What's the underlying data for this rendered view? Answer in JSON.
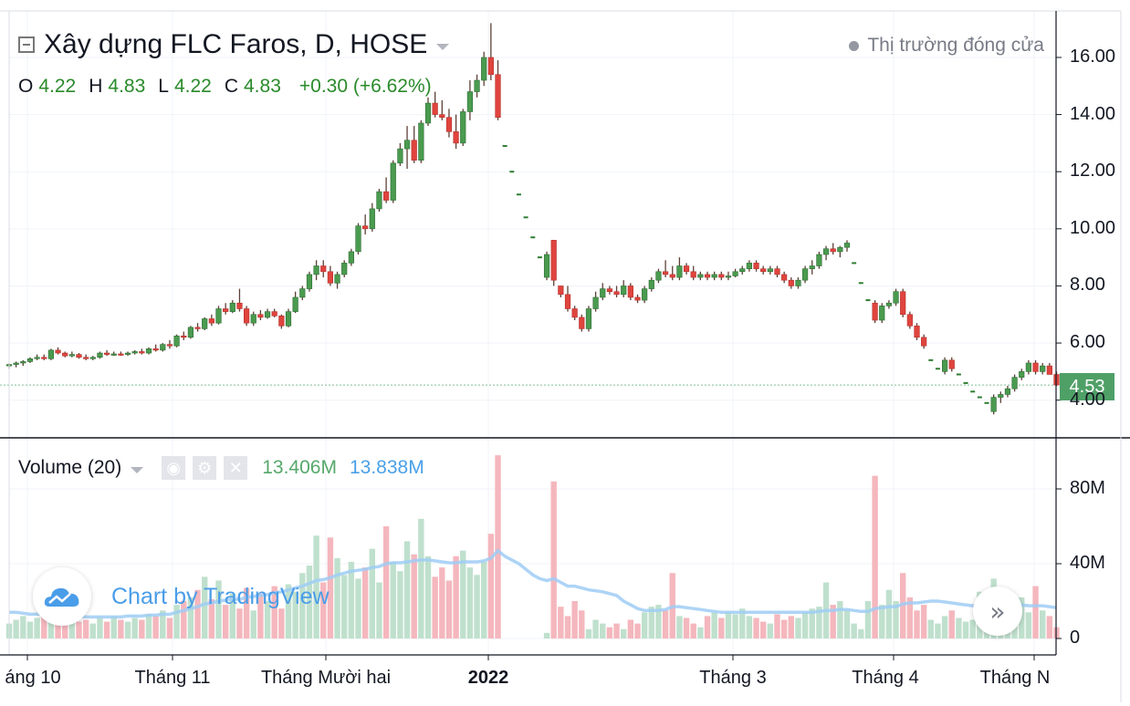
{
  "header": {
    "title": "Xây dựng FLC Faros, D, HOSE",
    "market_status": "Thị trường đóng cửa"
  },
  "ohlc": {
    "o_key": "O",
    "o": "4.22",
    "h_key": "H",
    "h": "4.83",
    "l_key": "L",
    "l": "4.22",
    "c_key": "C",
    "c": "4.83",
    "change": "+0.30 (+6.62%)"
  },
  "volume": {
    "title": "Volume (20)",
    "value": "13.406M",
    "ma_value": "13.838M"
  },
  "watermark": "Chart by TradingView",
  "last_price": "4.53",
  "price_axis": [
    "16.00",
    "14.00",
    "12.00",
    "10.00",
    "8.00",
    "6.00",
    "4.00"
  ],
  "volume_axis": [
    "80M",
    "40M",
    "0"
  ],
  "time_axis": [
    {
      "label": "áng 10",
      "bold": false
    },
    {
      "label": "Tháng 11",
      "bold": false
    },
    {
      "label": "Tháng Mười hai",
      "bold": false
    },
    {
      "label": "2022",
      "bold": true
    },
    {
      "label": "Tháng 3",
      "bold": false
    },
    {
      "label": "Tháng 4",
      "bold": false
    },
    {
      "label": "Tháng N",
      "bold": false
    }
  ],
  "colors": {
    "up": "#4a9b4f",
    "down": "#e0443e",
    "volume_up": "#bfe0cd",
    "volume_down": "#f4b7bd",
    "volume_ma": "#9fcdf4",
    "badge": "#4fa067"
  },
  "chart_data": {
    "type": "candlestick",
    "title": "Xây dựng FLC Faros, D, HOSE",
    "price_range": [
      3.0,
      17.5
    ],
    "volume_range_millions": [
      0,
      100
    ],
    "series": [
      {
        "name": "price",
        "values": [
          [
            5.2,
            5.3,
            5.1,
            5.25
          ],
          [
            5.25,
            5.35,
            5.15,
            5.3
          ],
          [
            5.3,
            5.4,
            5.2,
            5.35
          ],
          [
            5.35,
            5.5,
            5.3,
            5.45
          ],
          [
            5.45,
            5.6,
            5.4,
            5.5
          ],
          [
            5.5,
            5.6,
            5.4,
            5.45
          ],
          [
            5.45,
            5.8,
            5.4,
            5.75
          ],
          [
            5.75,
            5.85,
            5.6,
            5.65
          ],
          [
            5.65,
            5.7,
            5.5,
            5.55
          ],
          [
            5.55,
            5.7,
            5.5,
            5.6
          ],
          [
            5.6,
            5.65,
            5.45,
            5.5
          ],
          [
            5.5,
            5.6,
            5.4,
            5.45
          ],
          [
            5.45,
            5.55,
            5.4,
            5.5
          ],
          [
            5.5,
            5.7,
            5.45,
            5.65
          ],
          [
            5.65,
            5.75,
            5.55,
            5.6
          ],
          [
            5.6,
            5.7,
            5.55,
            5.62
          ],
          [
            5.62,
            5.7,
            5.55,
            5.6
          ],
          [
            5.6,
            5.7,
            5.55,
            5.65
          ],
          [
            5.65,
            5.75,
            5.6,
            5.7
          ],
          [
            5.7,
            5.8,
            5.6,
            5.65
          ],
          [
            5.65,
            5.85,
            5.6,
            5.8
          ],
          [
            5.8,
            5.95,
            5.7,
            5.75
          ],
          [
            5.75,
            6.0,
            5.7,
            5.95
          ],
          [
            5.95,
            6.1,
            5.8,
            5.9
          ],
          [
            5.9,
            6.3,
            5.85,
            6.25
          ],
          [
            6.25,
            6.4,
            6.1,
            6.2
          ],
          [
            6.2,
            6.6,
            6.15,
            6.55
          ],
          [
            6.55,
            6.7,
            6.4,
            6.5
          ],
          [
            6.5,
            6.9,
            6.45,
            6.85
          ],
          [
            6.85,
            7.0,
            6.6,
            6.7
          ],
          [
            6.7,
            7.3,
            6.65,
            7.2
          ],
          [
            7.2,
            7.4,
            7.0,
            7.1
          ],
          [
            7.1,
            7.5,
            7.05,
            7.4
          ],
          [
            7.4,
            7.9,
            7.1,
            7.2
          ],
          [
            7.2,
            7.3,
            6.6,
            6.7
          ],
          [
            6.7,
            7.1,
            6.6,
            7.0
          ],
          [
            7.0,
            7.15,
            6.8,
            6.9
          ],
          [
            6.9,
            7.2,
            6.85,
            7.1
          ],
          [
            7.1,
            7.2,
            6.9,
            6.95
          ],
          [
            6.95,
            7.0,
            6.5,
            6.6
          ],
          [
            6.6,
            7.2,
            6.55,
            7.1
          ],
          [
            7.1,
            7.8,
            7.05,
            7.6
          ],
          [
            7.6,
            8.0,
            7.5,
            7.9
          ],
          [
            7.9,
            8.5,
            7.8,
            8.4
          ],
          [
            8.4,
            8.9,
            8.2,
            8.7
          ],
          [
            8.7,
            8.9,
            8.3,
            8.5
          ],
          [
            8.5,
            8.7,
            8.0,
            8.1
          ],
          [
            8.1,
            8.5,
            7.9,
            8.4
          ],
          [
            8.4,
            8.9,
            8.3,
            8.8
          ],
          [
            8.8,
            9.3,
            8.7,
            9.2
          ],
          [
            9.2,
            10.2,
            9.1,
            10.1
          ],
          [
            10.1,
            10.5,
            9.8,
            10.0
          ],
          [
            10.0,
            10.9,
            9.9,
            10.7
          ],
          [
            10.7,
            11.4,
            10.6,
            11.3
          ],
          [
            11.3,
            11.8,
            10.9,
            11.0
          ],
          [
            11.0,
            12.4,
            10.9,
            12.3
          ],
          [
            12.3,
            13.0,
            12.2,
            12.8
          ],
          [
            12.8,
            13.6,
            12.1,
            13.1
          ],
          [
            13.1,
            13.6,
            12.3,
            12.4
          ],
          [
            12.4,
            13.8,
            12.3,
            13.7
          ],
          [
            13.7,
            14.6,
            13.6,
            14.4
          ],
          [
            14.4,
            14.8,
            13.9,
            14.0
          ],
          [
            14.0,
            14.5,
            13.8,
            13.9
          ],
          [
            13.9,
            14.2,
            13.2,
            13.4
          ],
          [
            13.4,
            14.0,
            12.8,
            13.0
          ],
          [
            13.0,
            14.2,
            12.9,
            14.1
          ],
          [
            14.1,
            15.2,
            13.8,
            14.8
          ],
          [
            14.8,
            15.4,
            14.6,
            15.2
          ],
          [
            15.2,
            16.2,
            15.0,
            16.0
          ],
          [
            16.0,
            17.2,
            15.2,
            15.4
          ],
          [
            15.4,
            15.9,
            13.8,
            13.9
          ],
          [
            12.9,
            12.9,
            12.9,
            12.9
          ],
          [
            12.0,
            12.0,
            12.0,
            12.0
          ],
          [
            11.2,
            11.2,
            11.2,
            11.2
          ],
          [
            10.4,
            10.4,
            10.4,
            10.4
          ],
          [
            9.7,
            9.7,
            9.7,
            9.7
          ],
          [
            9.0,
            9.0,
            9.0,
            9.0
          ],
          [
            8.3,
            9.2,
            8.2,
            9.1
          ],
          [
            9.6,
            9.6,
            8.0,
            8.2
          ],
          [
            8.0,
            8.0,
            7.6,
            7.7
          ],
          [
            7.7,
            8.0,
            7.1,
            7.2
          ],
          [
            7.2,
            7.3,
            6.8,
            6.9
          ],
          [
            6.9,
            7.0,
            6.4,
            6.5
          ],
          [
            6.5,
            7.3,
            6.4,
            7.2
          ],
          [
            7.2,
            7.8,
            7.1,
            7.6
          ],
          [
            7.6,
            8.1,
            7.5,
            7.9
          ],
          [
            7.9,
            8.0,
            7.7,
            7.8
          ],
          [
            7.8,
            8.0,
            7.6,
            7.7
          ],
          [
            7.7,
            8.2,
            7.6,
            8.0
          ],
          [
            8.0,
            8.1,
            7.5,
            7.6
          ],
          [
            7.6,
            7.7,
            7.4,
            7.5
          ],
          [
            7.5,
            8.0,
            7.4,
            7.9
          ],
          [
            7.9,
            8.3,
            7.8,
            8.2
          ],
          [
            8.2,
            8.6,
            8.1,
            8.5
          ],
          [
            8.5,
            8.9,
            8.3,
            8.4
          ],
          [
            8.4,
            8.7,
            8.2,
            8.3
          ],
          [
            8.3,
            9.0,
            8.2,
            8.7
          ],
          [
            8.7,
            8.8,
            8.4,
            8.5
          ],
          [
            8.5,
            8.7,
            8.2,
            8.3
          ],
          [
            8.3,
            8.5,
            8.2,
            8.4
          ],
          [
            8.4,
            8.5,
            8.2,
            8.3
          ],
          [
            8.3,
            8.5,
            8.2,
            8.4
          ],
          [
            8.4,
            8.5,
            8.2,
            8.3
          ],
          [
            8.3,
            8.5,
            8.2,
            8.35
          ],
          [
            8.35,
            8.6,
            8.3,
            8.5
          ],
          [
            8.5,
            8.7,
            8.4,
            8.6
          ],
          [
            8.6,
            8.9,
            8.5,
            8.8
          ],
          [
            8.8,
            8.9,
            8.5,
            8.6
          ],
          [
            8.6,
            8.7,
            8.4,
            8.5
          ],
          [
            8.5,
            8.7,
            8.4,
            8.6
          ],
          [
            8.6,
            8.7,
            8.3,
            8.4
          ],
          [
            8.4,
            8.5,
            8.1,
            8.2
          ],
          [
            8.2,
            8.3,
            7.9,
            8.0
          ],
          [
            8.0,
            8.3,
            7.9,
            8.2
          ],
          [
            8.2,
            8.7,
            8.1,
            8.6
          ],
          [
            8.6,
            8.9,
            8.4,
            8.7
          ],
          [
            8.7,
            9.2,
            8.6,
            9.1
          ],
          [
            9.1,
            9.4,
            8.9,
            9.3
          ],
          [
            9.3,
            9.5,
            9.1,
            9.2
          ],
          [
            9.2,
            9.4,
            9.0,
            9.35
          ],
          [
            9.35,
            9.6,
            9.2,
            9.5
          ],
          [
            8.8,
            8.8,
            8.8,
            8.8
          ],
          [
            8.1,
            8.1,
            8.1,
            8.1
          ],
          [
            7.5,
            7.5,
            7.5,
            7.5
          ],
          [
            7.4,
            7.5,
            6.7,
            6.8
          ],
          [
            6.8,
            7.4,
            6.7,
            7.3
          ],
          [
            7.3,
            7.5,
            7.2,
            7.4
          ],
          [
            7.4,
            7.9,
            7.3,
            7.8
          ],
          [
            7.8,
            7.9,
            6.9,
            7.0
          ],
          [
            7.0,
            7.1,
            6.5,
            6.6
          ],
          [
            6.6,
            6.7,
            6.1,
            6.2
          ],
          [
            6.2,
            6.3,
            5.8,
            5.9
          ],
          [
            5.4,
            5.4,
            5.4,
            5.4
          ],
          [
            5.1,
            5.1,
            5.1,
            5.1
          ],
          [
            5.0,
            5.5,
            4.9,
            5.4
          ],
          [
            5.4,
            5.5,
            5.0,
            5.1
          ],
          [
            4.9,
            4.9,
            4.9,
            4.9
          ],
          [
            4.6,
            4.6,
            4.6,
            4.6
          ],
          [
            4.3,
            4.3,
            4.3,
            4.3
          ],
          [
            4.1,
            4.1,
            4.1,
            4.1
          ],
          [
            3.9,
            3.9,
            3.9,
            3.9
          ],
          [
            3.6,
            4.2,
            3.5,
            4.1
          ],
          [
            4.1,
            4.3,
            3.9,
            4.2
          ],
          [
            4.2,
            4.5,
            4.1,
            4.4
          ],
          [
            4.4,
            4.9,
            4.3,
            4.8
          ],
          [
            4.8,
            5.1,
            4.7,
            5.0
          ],
          [
            5.0,
            5.4,
            4.9,
            5.3
          ],
          [
            5.3,
            5.4,
            4.9,
            5.0
          ],
          [
            5.0,
            5.3,
            4.9,
            5.2
          ],
          [
            5.2,
            5.3,
            4.9,
            4.9
          ],
          [
            4.9,
            5.0,
            4.5,
            4.53
          ]
        ]
      }
    ],
    "volume_millions": [
      8,
      10,
      12,
      9,
      11,
      14,
      10,
      9,
      8,
      12,
      9,
      10,
      8,
      11,
      9,
      12,
      10,
      9,
      11,
      10,
      13,
      12,
      15,
      11,
      18,
      20,
      22,
      26,
      33,
      21,
      31,
      18,
      24,
      16,
      27,
      15,
      24,
      20,
      28,
      16,
      29,
      25,
      35,
      39,
      55,
      30,
      54,
      43,
      34,
      41,
      32,
      38,
      48,
      30,
      60,
      41,
      36,
      52,
      45,
      64,
      44,
      33,
      38,
      31,
      44,
      47,
      38,
      34,
      41,
      56,
      98,
      0,
      0,
      0,
      0,
      0,
      0,
      3,
      84,
      17,
      12,
      20,
      15,
      5,
      10,
      8,
      6,
      8,
      5,
      10,
      8,
      14,
      17,
      18,
      15,
      35,
      12,
      11,
      8,
      6,
      12,
      14,
      11,
      14,
      13,
      16,
      12,
      11,
      9,
      8,
      13,
      10,
      12,
      11,
      14,
      16,
      17,
      30,
      18,
      20,
      15,
      8,
      5,
      20,
      87,
      18,
      26,
      20,
      35,
      22,
      15,
      18,
      10,
      8,
      12,
      15,
      11,
      9,
      10,
      25,
      22,
      32,
      16,
      18,
      12,
      22,
      14,
      28,
      15,
      12,
      6
    ],
    "volume_ma_millions": [
      14,
      14,
      13.5,
      13,
      13,
      13,
      12.5,
      12,
      12,
      12,
      12,
      11.5,
      11.5,
      11.5,
      11.5,
      11.5,
      11.5,
      12,
      12,
      12,
      12.5,
      12.5,
      13,
      13,
      14,
      15,
      16,
      17,
      18.5,
      19,
      20,
      20.5,
      21,
      21,
      22,
      22.5,
      23,
      23.5,
      24.5,
      25,
      26,
      27,
      28,
      29.5,
      31,
      31.5,
      32.5,
      34,
      35,
      36,
      36.5,
      37,
      38,
      38.5,
      40,
      40.5,
      40.5,
      41,
      41.5,
      42,
      42,
      41.5,
      41,
      40.5,
      40.5,
      41,
      41,
      41,
      41.5,
      43,
      47,
      44,
      42,
      40,
      37,
      34,
      32,
      31,
      32,
      30,
      28,
      28,
      27,
      26,
      25.5,
      25,
      24,
      23,
      20,
      18,
      16,
      15,
      15,
      15,
      15.5,
      17,
      17,
      16.5,
      16,
      15.5,
      15,
      14.5,
      14,
      14,
      14,
      14,
      14,
      14,
      14,
      14,
      14,
      14,
      14,
      14,
      14,
      14,
      14.5,
      15,
      15,
      15.5,
      15.5,
      15,
      14.5,
      14.5,
      16,
      16.5,
      17,
      17,
      18.5,
      19,
      19,
      19.5,
      20,
      20,
      19.5,
      19,
      18.5,
      18,
      17.5,
      18,
      18,
      18.5,
      18.5,
      18.5,
      18,
      18,
      17.5,
      17.5,
      17.5,
      17,
      16.5
    ],
    "ylabel": "",
    "xlabel": "",
    "grid": true
  }
}
